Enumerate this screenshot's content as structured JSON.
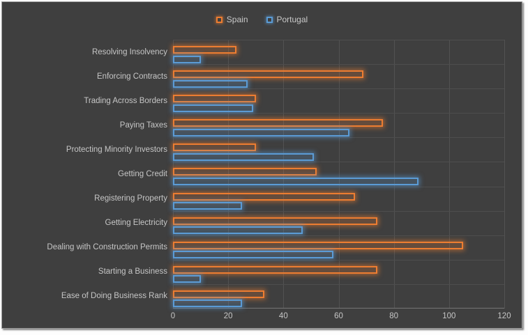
{
  "chart_data": {
    "type": "bar",
    "orientation": "horizontal",
    "title": "",
    "xlabel": "",
    "ylabel": "",
    "categories": [
      "Resolving Insolvency",
      "Enforcing Contracts",
      "Trading Across Borders",
      "Paying Taxes",
      "Protecting Minority Investors",
      "Getting Credit",
      "Registering Property",
      "Getting Electricity",
      "Dealing with Construction Permits",
      "Starting a Business",
      "Ease of Doing Business Rank"
    ],
    "series": [
      {
        "name": "Spain",
        "color": "#ED7D31",
        "values": [
          23,
          69,
          30,
          76,
          30,
          52,
          66,
          74,
          105,
          74,
          33
        ]
      },
      {
        "name": "Portugal",
        "color": "#5B9BD5",
        "values": [
          10,
          27,
          29,
          64,
          51,
          89,
          25,
          47,
          58,
          10,
          25
        ]
      }
    ],
    "xlim": [
      0,
      120
    ],
    "x_ticks": [
      0,
      20,
      40,
      60,
      80,
      100,
      120
    ],
    "grid": true,
    "legend_position": "top-center",
    "background_color": "#3F3F3F",
    "text_color": "#C6C6C6",
    "gridline_color": "#525252",
    "bar_style": "hollow-with-glow"
  }
}
